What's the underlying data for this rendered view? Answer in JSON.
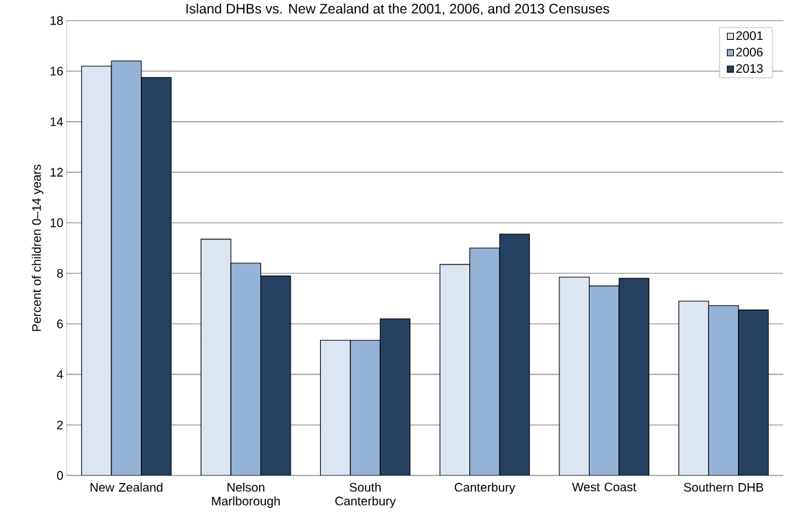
{
  "chart_data": {
    "type": "bar",
    "title": "Island DHBs vs. New Zealand at the 2001, 2006, and 2013 Censuses",
    "ylabel": "Percent of children 0–14 years",
    "categories": [
      "New Zealand",
      "Nelson Marlborough",
      "South Canterbury",
      "Canterbury",
      "West Coast",
      "Southern DHB"
    ],
    "series": [
      {
        "name": "2001",
        "color": "#dce6f2",
        "values": [
          16.2,
          9.35,
          5.35,
          8.35,
          7.85,
          6.9
        ]
      },
      {
        "name": "2006",
        "color": "#95b3d7",
        "values": [
          16.4,
          8.4,
          5.35,
          9.0,
          7.5,
          6.72
        ]
      },
      {
        "name": "2013",
        "color": "#254061",
        "values": [
          15.75,
          7.9,
          6.2,
          9.55,
          7.8,
          6.55
        ]
      }
    ],
    "ylim": [
      0,
      18
    ],
    "yticks": [
      0,
      2,
      4,
      6,
      8,
      10,
      12,
      14,
      16,
      18
    ],
    "grid": "y",
    "legend": "top right"
  }
}
